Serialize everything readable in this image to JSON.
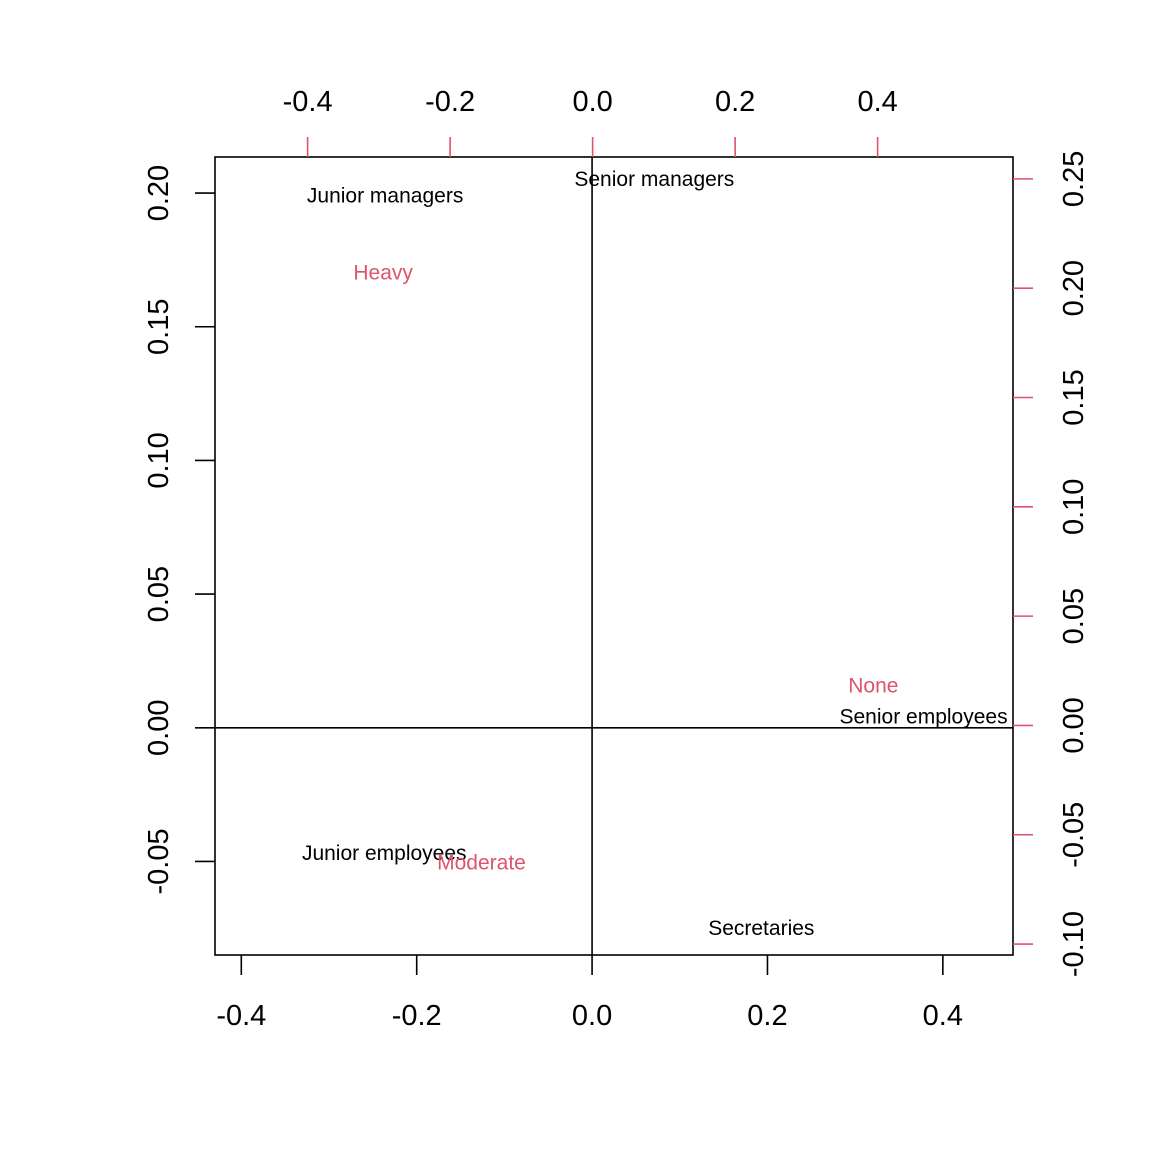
{
  "chart_data": {
    "type": "scatter",
    "title": "",
    "xlabel": "",
    "ylabel": "",
    "grid": false,
    "legend": "none",
    "colors": {
      "row": "#000000",
      "col": "#DF536B",
      "axes": "#000000"
    },
    "primary_axes": {
      "xlim": [
        -0.43,
        0.48
      ],
      "ylim": [
        -0.085,
        0.2135
      ],
      "x_ticks": [
        -0.4,
        -0.2,
        0.0,
        0.2,
        0.4
      ],
      "x_tick_labels": [
        "-0.4",
        "-0.2",
        "0.0",
        "0.2",
        "0.4"
      ],
      "y_ticks": [
        -0.05,
        0.0,
        0.05,
        0.1,
        0.15,
        0.2
      ],
      "y_tick_labels": [
        "-0.05",
        "0.00",
        "0.05",
        "0.10",
        "0.15",
        "0.20"
      ]
    },
    "secondary_axes": {
      "xlim": [
        -0.53,
        0.59
      ],
      "ylim": [
        -0.105,
        0.26
      ],
      "x_ticks": [
        -0.4,
        -0.2,
        0.0,
        0.2,
        0.4
      ],
      "x_tick_labels": [
        "-0.4",
        "-0.2",
        "0.0",
        "0.2",
        "0.4"
      ],
      "y_ticks": [
        -0.1,
        -0.05,
        0.0,
        0.05,
        0.1,
        0.15,
        0.2,
        0.25
      ],
      "y_tick_labels": [
        "-0.10",
        "-0.05",
        "0.00",
        "0.05",
        "0.10",
        "0.15",
        "0.20",
        "0.25"
      ]
    },
    "series": [
      {
        "role": "rows",
        "color": "#000000",
        "axes": "primary",
        "points": [
          {
            "label": "Senior managers",
            "x": 0.071,
            "y": 0.205
          },
          {
            "label": "Junior managers",
            "x": -0.236,
            "y": 0.199
          },
          {
            "label": "Senior employees",
            "x": 0.378,
            "y": 0.004
          },
          {
            "label": "Junior employees",
            "x": -0.237,
            "y": -0.047
          },
          {
            "label": "Secretaries",
            "x": 0.193,
            "y": -0.075
          }
        ]
      },
      {
        "role": "columns",
        "color": "#DF536B",
        "axes": "secondary",
        "points": [
          {
            "label": "None",
            "x": 0.394,
            "y": 0.018
          },
          {
            "label": "Heavy",
            "x": -0.294,
            "y": 0.207
          },
          {
            "label": "Moderate",
            "x": -0.156,
            "y": -0.063
          }
        ]
      }
    ]
  }
}
